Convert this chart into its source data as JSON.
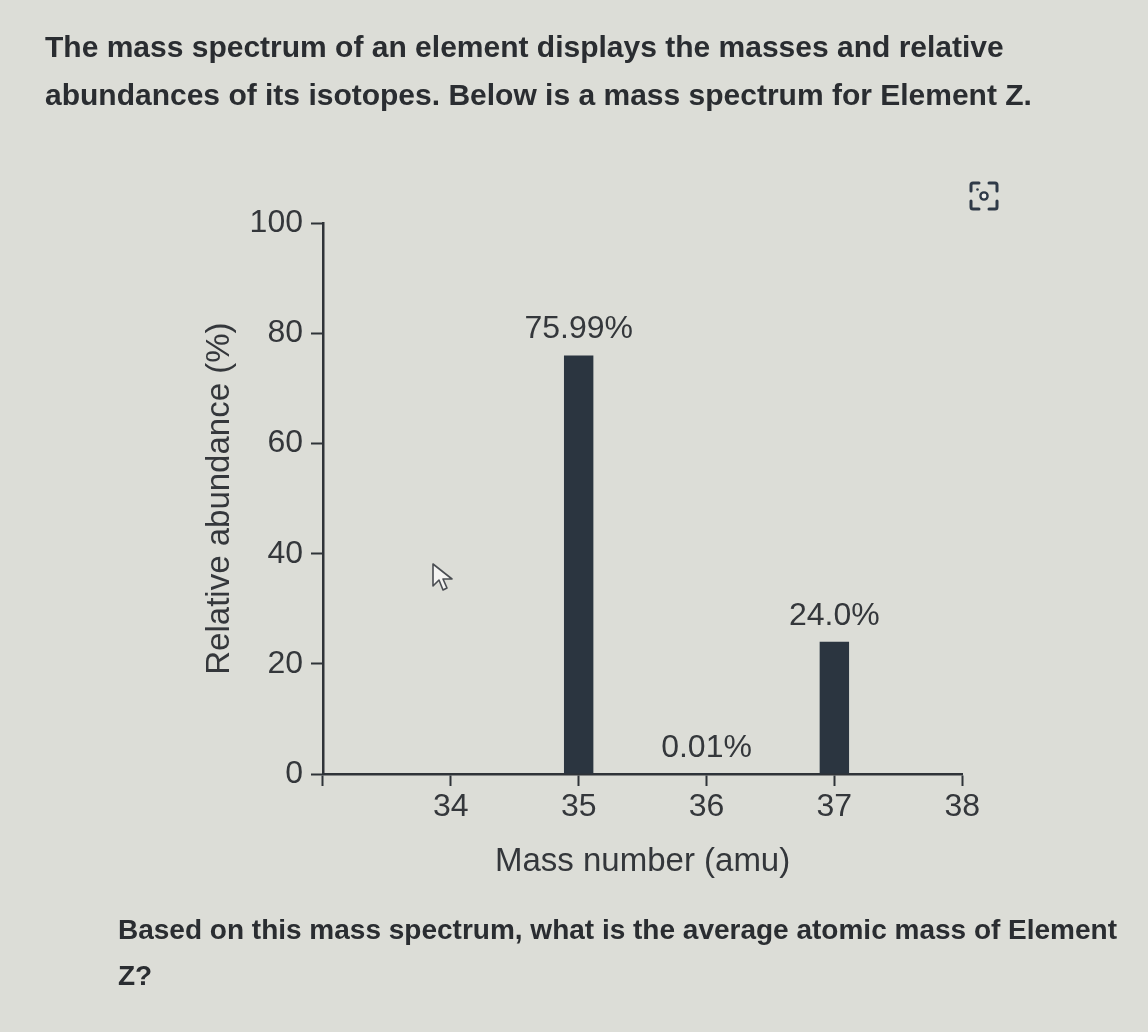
{
  "chart_data": {
    "type": "bar",
    "title": "The mass spectrum of an element displays the masses and relative abundances of its isotopes. Below is a mass spectrum for Element Z.",
    "xlabel": "Mass number (amu)",
    "ylabel": "Relative abundance (%)",
    "x": [
      35,
      36,
      37
    ],
    "values": [
      75.99,
      0.01,
      24.0
    ],
    "value_labels": [
      "75.99%",
      "0.01%",
      "24.0%"
    ],
    "color": "#2b3540",
    "xlim": [
      33,
      38
    ],
    "xticks": [
      {
        "value": 33,
        "label": null
      },
      34,
      35,
      36,
      37,
      38
    ],
    "ylim": [
      0,
      100
    ],
    "yticks": [
      0,
      20,
      40,
      60,
      80,
      100
    ],
    "annotations": [
      "Based on this mass spectrum, what is the average atomic mass of Element Z?"
    ]
  }
}
